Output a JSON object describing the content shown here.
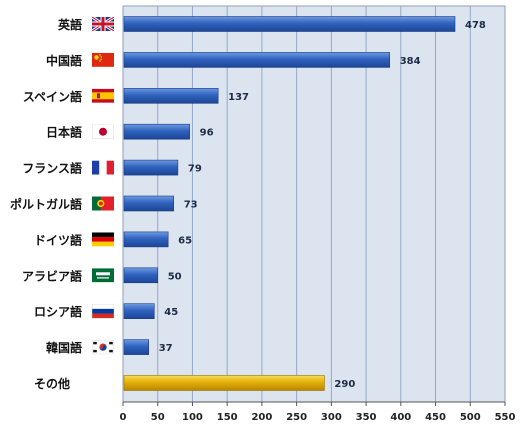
{
  "chart_data": {
    "type": "bar",
    "orientation": "horizontal",
    "title": "",
    "xlabel": "",
    "ylabel": "",
    "xlim": [
      0,
      550
    ],
    "x_ticks": [
      0,
      50,
      100,
      150,
      200,
      250,
      300,
      350,
      400,
      450,
      500,
      550
    ],
    "grid": "vertical",
    "categories": [
      "英語",
      "中国語",
      "スペイン語",
      "日本語",
      "フランス語",
      "ポルトガル語",
      "ドイツ語",
      "アラビア語",
      "ロシア語",
      "韓国語",
      "その他"
    ],
    "values": [
      478,
      384,
      137,
      96,
      79,
      73,
      65,
      50,
      45,
      37,
      290
    ],
    "flags": [
      "uk-flag-icon",
      "china-flag-icon",
      "spain-flag-icon",
      "japan-flag-icon",
      "france-flag-icon",
      "portugal-flag-icon",
      "germany-flag-icon",
      "saudi-arabia-flag-icon",
      "russia-flag-icon",
      "south-korea-flag-icon",
      ""
    ],
    "bar_colors": [
      "#2f63bf",
      "#2f63bf",
      "#2f63bf",
      "#2f63bf",
      "#2f63bf",
      "#2f63bf",
      "#2f63bf",
      "#2f63bf",
      "#2f63bf",
      "#2f63bf",
      "#e3b10a"
    ],
    "plot_background": "#dce4f0",
    "grid_color": "#93a9c9"
  }
}
